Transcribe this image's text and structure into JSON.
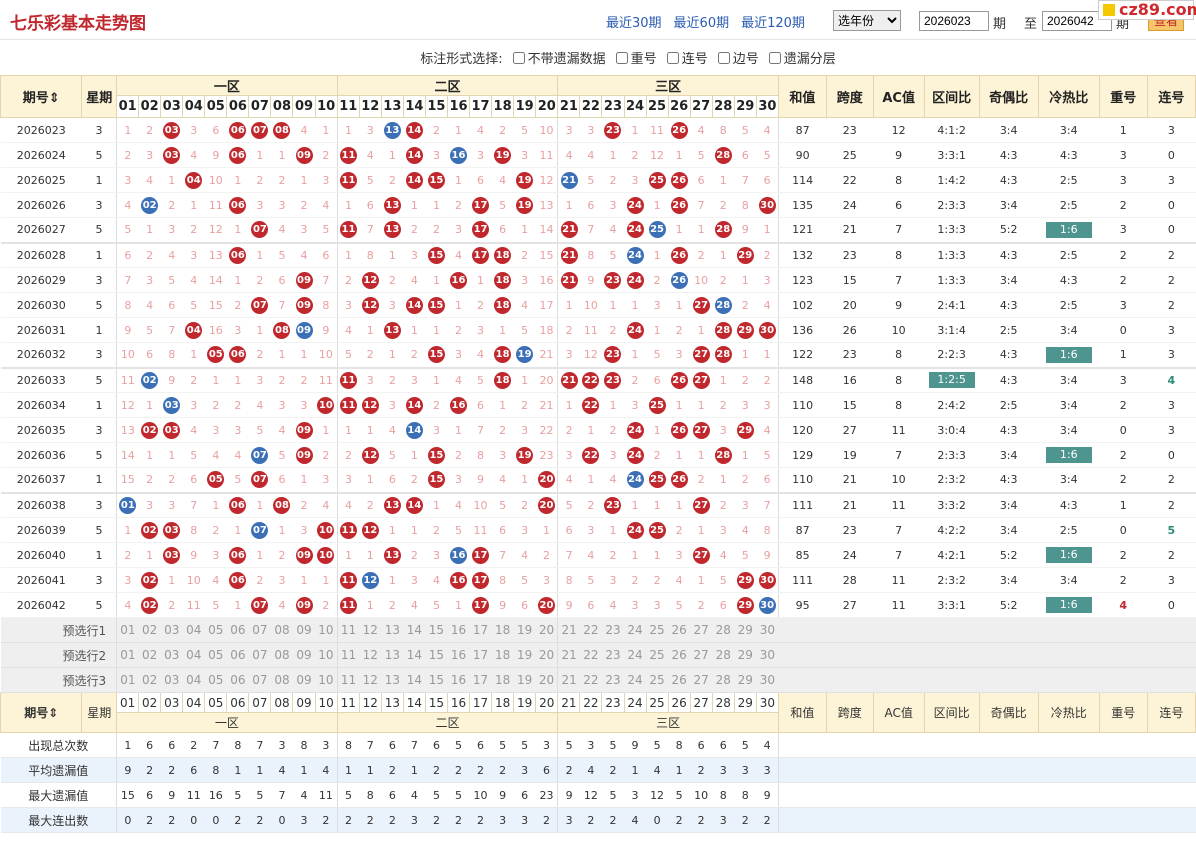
{
  "header": {
    "title": "七乐彩基本走势图",
    "nav": [
      "最近30期",
      "最近60期",
      "最近120期"
    ],
    "year_select": "选年份",
    "issue_from": "2026023",
    "to_label": "至",
    "issue_to": "2026042",
    "issue_suffix": "期",
    "query_button": "查看",
    "logo_text": "cz89.com"
  },
  "options": {
    "label": "标注形式选择:",
    "items": [
      "不带遗漏数据",
      "重号",
      "连号",
      "边号",
      "遗漏分层"
    ]
  },
  "table": {
    "col_issue": "期号",
    "col_week": "星期",
    "zones": [
      "一区",
      "二区",
      "三区"
    ],
    "numbers": [
      "01",
      "02",
      "03",
      "04",
      "05",
      "06",
      "07",
      "08",
      "09",
      "10",
      "11",
      "12",
      "13",
      "14",
      "15",
      "16",
      "17",
      "18",
      "19",
      "20",
      "21",
      "22",
      "23",
      "24",
      "25",
      "26",
      "27",
      "28",
      "29",
      "30"
    ],
    "stat_cols": [
      "和值",
      "跨度",
      "AC值",
      "区间比",
      "奇偶比",
      "冷热比",
      "重号",
      "连号"
    ],
    "rows": [
      {
        "issue": "2026023",
        "week": "3",
        "cells": [
          "1",
          "2",
          "r:03",
          "3",
          "6",
          "r:06",
          "r:07",
          "r:08",
          "4",
          "1",
          "1",
          "3",
          "b:13",
          "r:14",
          "2",
          "1",
          "4",
          "2",
          "5",
          "10",
          "3",
          "3",
          "r:23",
          "1",
          "11",
          "r:26",
          "4",
          "8",
          "5",
          "4"
        ],
        "sum": "87",
        "span": "23",
        "ac": "12",
        "zone": "4:1:2",
        "oe": "3:4",
        "ch": "3:4",
        "rep": "1",
        "con": "3"
      },
      {
        "issue": "2026024",
        "week": "5",
        "cells": [
          "2",
          "3",
          "r:03",
          "4",
          "9",
          "r:06",
          "1",
          "1",
          "r:09",
          "2",
          "r:11",
          "4",
          "1",
          "r:14",
          "3",
          "b:16",
          "3",
          "r:19",
          "3",
          "11",
          "4",
          "4",
          "1",
          "2",
          "12",
          "1",
          "5",
          "r:28",
          "6",
          "5"
        ],
        "sum": "90",
        "span": "25",
        "ac": "9",
        "zone": "3:3:1",
        "oe": "4:3",
        "ch": "4:3",
        "rep": "3",
        "con": "0"
      },
      {
        "issue": "2026025",
        "week": "1",
        "cells": [
          "3",
          "4",
          "1",
          "r:04",
          "10",
          "1",
          "2",
          "2",
          "1",
          "3",
          "r:11",
          "5",
          "2",
          "r:14",
          "r:15",
          "1",
          "6",
          "4",
          "r:19",
          "12",
          "b:21",
          "5",
          "2",
          "3",
          "r:25",
          "r:26",
          "6",
          "1",
          "7",
          "6"
        ],
        "sum": "114",
        "span": "22",
        "ac": "8",
        "zone": "1:4:2",
        "oe": "4:3",
        "ch": "2:5",
        "rep": "3",
        "con": "3"
      },
      {
        "issue": "2026026",
        "week": "3",
        "cells": [
          "4",
          "b:02",
          "2",
          "1",
          "11",
          "r:06",
          "3",
          "3",
          "2",
          "4",
          "1",
          "6",
          "r:13",
          "1",
          "1",
          "2",
          "r:17",
          "5",
          "r:19",
          "13",
          "1",
          "6",
          "3",
          "r:24",
          "1",
          "r:26",
          "7",
          "2",
          "8",
          "r:30"
        ],
        "sum": "135",
        "span": "24",
        "ac": "6",
        "zone": "2:3:3",
        "oe": "3:4",
        "ch": "2:5",
        "rep": "2",
        "con": "0"
      },
      {
        "issue": "2026027",
        "week": "5",
        "cells": [
          "5",
          "1",
          "3",
          "2",
          "12",
          "1",
          "r:07",
          "4",
          "3",
          "5",
          "r:11",
          "7",
          "r:13",
          "2",
          "2",
          "3",
          "r:17",
          "6",
          "1",
          "14",
          "r:21",
          "7",
          "4",
          "r:24",
          "b:25",
          "1",
          "1",
          "r:28",
          "9",
          "1"
        ],
        "sum": "121",
        "span": "21",
        "ac": "7",
        "zone": "1:3:3",
        "oe": "5:2",
        "ch": "H:1:6",
        "rep": "3",
        "con": "0",
        "gap": true
      },
      {
        "issue": "2026028",
        "week": "1",
        "cells": [
          "6",
          "2",
          "4",
          "3",
          "13",
          "r:06",
          "1",
          "5",
          "4",
          "6",
          "1",
          "8",
          "1",
          "3",
          "r:15",
          "4",
          "r:17",
          "r:18",
          "2",
          "15",
          "r:21",
          "8",
          "5",
          "b:24",
          "1",
          "r:26",
          "2",
          "1",
          "r:29",
          "2"
        ],
        "sum": "132",
        "span": "23",
        "ac": "8",
        "zone": "1:3:3",
        "oe": "4:3",
        "ch": "2:5",
        "rep": "2",
        "con": "2"
      },
      {
        "issue": "2026029",
        "week": "3",
        "cells": [
          "7",
          "3",
          "5",
          "4",
          "14",
          "1",
          "2",
          "6",
          "r:09",
          "7",
          "2",
          "r:12",
          "2",
          "4",
          "1",
          "r:16",
          "1",
          "r:18",
          "3",
          "16",
          "r:21",
          "9",
          "r:23",
          "r:24",
          "2",
          "b:26",
          "10",
          "2",
          "1",
          "3"
        ],
        "sum": "123",
        "span": "15",
        "ac": "7",
        "zone": "1:3:3",
        "oe": "3:4",
        "ch": "4:3",
        "rep": "2",
        "con": "2"
      },
      {
        "issue": "2026030",
        "week": "5",
        "cells": [
          "8",
          "4",
          "6",
          "5",
          "15",
          "2",
          "r:07",
          "7",
          "r:09",
          "8",
          "3",
          "r:12",
          "3",
          "r:14",
          "r:15",
          "1",
          "2",
          "r:18",
          "4",
          "17",
          "1",
          "10",
          "1",
          "1",
          "3",
          "1",
          "r:27",
          "b:28",
          "2",
          "4"
        ],
        "sum": "102",
        "span": "20",
        "ac": "9",
        "zone": "2:4:1",
        "oe": "4:3",
        "ch": "2:5",
        "rep": "3",
        "con": "2"
      },
      {
        "issue": "2026031",
        "week": "1",
        "cells": [
          "9",
          "5",
          "7",
          "r:04",
          "16",
          "3",
          "1",
          "r:08",
          "b:09",
          "9",
          "4",
          "1",
          "r:13",
          "1",
          "1",
          "2",
          "3",
          "1",
          "5",
          "18",
          "2",
          "11",
          "2",
          "r:24",
          "1",
          "2",
          "1",
          "r:28",
          "r:29",
          "r:30"
        ],
        "sum": "136",
        "span": "26",
        "ac": "10",
        "zone": "3:1:4",
        "oe": "2:5",
        "ch": "3:4",
        "rep": "0",
        "con": "3"
      },
      {
        "issue": "2026032",
        "week": "3",
        "cells": [
          "10",
          "6",
          "8",
          "1",
          "r:05",
          "r:06",
          "2",
          "1",
          "1",
          "10",
          "5",
          "2",
          "1",
          "2",
          "r:15",
          "3",
          "4",
          "r:18",
          "b:19",
          "21",
          "3",
          "12",
          "r:23",
          "1",
          "5",
          "3",
          "r:27",
          "r:28",
          "1",
          "1"
        ],
        "sum": "122",
        "span": "23",
        "ac": "8",
        "zone": "2:2:3",
        "oe": "4:3",
        "ch": "H:1:6",
        "rep": "1",
        "con": "3",
        "gap": true
      },
      {
        "issue": "2026033",
        "week": "5",
        "cells": [
          "11",
          "b:02",
          "9",
          "2",
          "1",
          "1",
          "3",
          "2",
          "2",
          "11",
          "r:11",
          "3",
          "2",
          "3",
          "1",
          "4",
          "5",
          "r:18",
          "1",
          "20",
          "r:21",
          "r:22",
          "r:23",
          "2",
          "6",
          "r:26",
          "r:27",
          "1",
          "2",
          "2"
        ],
        "sum": "148",
        "span": "16",
        "ac": "8",
        "zone": "H:1:2:5",
        "oe": "4:3",
        "ch": "3:4",
        "rep": "3",
        "con": "G:4"
      },
      {
        "issue": "2026034",
        "week": "1",
        "cells": [
          "12",
          "1",
          "b:03",
          "3",
          "2",
          "2",
          "4",
          "3",
          "3",
          "r:10",
          "r:11",
          "r:12",
          "3",
          "r:14",
          "2",
          "r:16",
          "6",
          "1",
          "2",
          "21",
          "1",
          "r:22",
          "1",
          "3",
          "r:25",
          "1",
          "1",
          "2",
          "3",
          "3"
        ],
        "sum": "110",
        "span": "15",
        "ac": "8",
        "zone": "2:4:2",
        "oe": "2:5",
        "ch": "3:4",
        "rep": "2",
        "con": "3"
      },
      {
        "issue": "2026035",
        "week": "3",
        "cells": [
          "13",
          "r:02",
          "r:03",
          "4",
          "3",
          "3",
          "5",
          "4",
          "r:09",
          "1",
          "1",
          "1",
          "4",
          "b:14",
          "3",
          "1",
          "7",
          "2",
          "3",
          "22",
          "2",
          "1",
          "2",
          "r:24",
          "1",
          "r:26",
          "r:27",
          "3",
          "r:29",
          "4"
        ],
        "sum": "120",
        "span": "27",
        "ac": "11",
        "zone": "3:0:4",
        "oe": "4:3",
        "ch": "3:4",
        "rep": "0",
        "con": "3"
      },
      {
        "issue": "2026036",
        "week": "5",
        "cells": [
          "14",
          "1",
          "1",
          "5",
          "4",
          "4",
          "b:07",
          "5",
          "r:09",
          "2",
          "2",
          "r:12",
          "5",
          "1",
          "r:15",
          "2",
          "8",
          "3",
          "r:19",
          "23",
          "3",
          "r:22",
          "3",
          "r:24",
          "2",
          "1",
          "1",
          "r:28",
          "1",
          "5"
        ],
        "sum": "129",
        "span": "19",
        "ac": "7",
        "zone": "2:3:3",
        "oe": "3:4",
        "ch": "H:1:6",
        "rep": "2",
        "con": "0"
      },
      {
        "issue": "2026037",
        "week": "1",
        "cells": [
          "15",
          "2",
          "2",
          "6",
          "r:05",
          "5",
          "r:07",
          "6",
          "1",
          "3",
          "3",
          "1",
          "6",
          "2",
          "r:15",
          "3",
          "9",
          "4",
          "1",
          "r:20",
          "4",
          "1",
          "4",
          "b:24",
          "r:25",
          "r:26",
          "2",
          "1",
          "2",
          "6"
        ],
        "sum": "110",
        "span": "21",
        "ac": "10",
        "zone": "2:3:2",
        "oe": "4:3",
        "ch": "3:4",
        "rep": "2",
        "con": "2",
        "gap": true
      },
      {
        "issue": "2026038",
        "week": "3",
        "cells": [
          "b:01",
          "3",
          "3",
          "7",
          "1",
          "r:06",
          "1",
          "r:08",
          "2",
          "4",
          "4",
          "2",
          "r:13",
          "r:14",
          "1",
          "4",
          "10",
          "5",
          "2",
          "r:20",
          "5",
          "2",
          "r:23",
          "1",
          "1",
          "1",
          "r:27",
          "2",
          "3",
          "7"
        ],
        "sum": "111",
        "span": "21",
        "ac": "11",
        "zone": "3:3:2",
        "oe": "3:4",
        "ch": "4:3",
        "rep": "1",
        "con": "2"
      },
      {
        "issue": "2026039",
        "week": "5",
        "cells": [
          "1",
          "r:02",
          "r:03",
          "8",
          "2",
          "1",
          "b:07",
          "1",
          "3",
          "r:10",
          "r:11",
          "r:12",
          "1",
          "1",
          "2",
          "5",
          "11",
          "6",
          "3",
          "1",
          "6",
          "3",
          "1",
          "r:24",
          "r:25",
          "2",
          "1",
          "3",
          "4",
          "8"
        ],
        "sum": "87",
        "span": "23",
        "ac": "7",
        "zone": "4:2:2",
        "oe": "3:4",
        "ch": "2:5",
        "rep": "0",
        "con": "G:5"
      },
      {
        "issue": "2026040",
        "week": "1",
        "cells": [
          "2",
          "1",
          "r:03",
          "9",
          "3",
          "r:06",
          "1",
          "2",
          "r:09",
          "r:10",
          "1",
          "1",
          "r:13",
          "2",
          "3",
          "b:16",
          "r:17",
          "7",
          "4",
          "2",
          "7",
          "4",
          "2",
          "1",
          "1",
          "3",
          "r:27",
          "4",
          "5",
          "9"
        ],
        "sum": "85",
        "span": "24",
        "ac": "7",
        "zone": "4:2:1",
        "oe": "5:2",
        "ch": "H:1:6",
        "rep": "2",
        "con": "2"
      },
      {
        "issue": "2026041",
        "week": "3",
        "cells": [
          "3",
          "r:02",
          "1",
          "10",
          "4",
          "r:06",
          "2",
          "3",
          "1",
          "1",
          "r:11",
          "b:12",
          "1",
          "3",
          "4",
          "r:16",
          "r:17",
          "8",
          "5",
          "3",
          "8",
          "5",
          "3",
          "2",
          "2",
          "4",
          "1",
          "5",
          "r:29",
          "r:30"
        ],
        "sum": "111",
        "span": "28",
        "ac": "11",
        "zone": "2:3:2",
        "oe": "3:4",
        "ch": "3:4",
        "rep": "2",
        "con": "3"
      },
      {
        "issue": "2026042",
        "week": "5",
        "cells": [
          "4",
          "r:02",
          "2",
          "11",
          "5",
          "1",
          "r:07",
          "4",
          "r:09",
          "2",
          "r:11",
          "1",
          "2",
          "4",
          "5",
          "1",
          "r:17",
          "9",
          "6",
          "r:20",
          "9",
          "6",
          "4",
          "3",
          "3",
          "5",
          "2",
          "6",
          "r:29",
          "b:30"
        ],
        "sum": "95",
        "span": "27",
        "ac": "11",
        "zone": "3:3:1",
        "oe": "5:2",
        "ch": "H:1:6",
        "rep": "R:4",
        "con": "0"
      }
    ],
    "preselect_labels": [
      "预选行1",
      "预选行2",
      "预选行3"
    ],
    "stats_labels": [
      "出现总次数",
      "平均遗漏值",
      "最大遗漏值",
      "最大连出数"
    ],
    "stats": [
      [
        "1",
        "6",
        "6",
        "2",
        "7",
        "8",
        "7",
        "3",
        "8",
        "3",
        "8",
        "7",
        "6",
        "7",
        "6",
        "5",
        "6",
        "5",
        "5",
        "3",
        "5",
        "3",
        "5",
        "9",
        "5",
        "8",
        "6",
        "6",
        "5",
        "4"
      ],
      [
        "9",
        "2",
        "2",
        "6",
        "8",
        "1",
        "1",
        "4",
        "1",
        "4",
        "1",
        "1",
        "2",
        "1",
        "2",
        "2",
        "2",
        "2",
        "3",
        "6",
        "2",
        "4",
        "2",
        "1",
        "4",
        "1",
        "2",
        "3",
        "3",
        "3"
      ],
      [
        "15",
        "6",
        "9",
        "11",
        "16",
        "5",
        "5",
        "7",
        "4",
        "11",
        "5",
        "8",
        "6",
        "4",
        "5",
        "5",
        "10",
        "9",
        "6",
        "23",
        "9",
        "12",
        "5",
        "3",
        "12",
        "5",
        "10",
        "8",
        "8",
        "9"
      ],
      [
        "0",
        "2",
        "2",
        "0",
        "0",
        "2",
        "2",
        "0",
        "3",
        "2",
        "2",
        "2",
        "2",
        "3",
        "2",
        "2",
        "2",
        "3",
        "3",
        "2",
        "3",
        "2",
        "2",
        "4",
        "0",
        "2",
        "2",
        "3",
        "2",
        "2"
      ]
    ]
  },
  "colors": {
    "red_ball": "#c0282d",
    "blue_ball": "#3b6fb6",
    "highlight": "#4f958f",
    "header_bg": "#fdf3d6"
  }
}
